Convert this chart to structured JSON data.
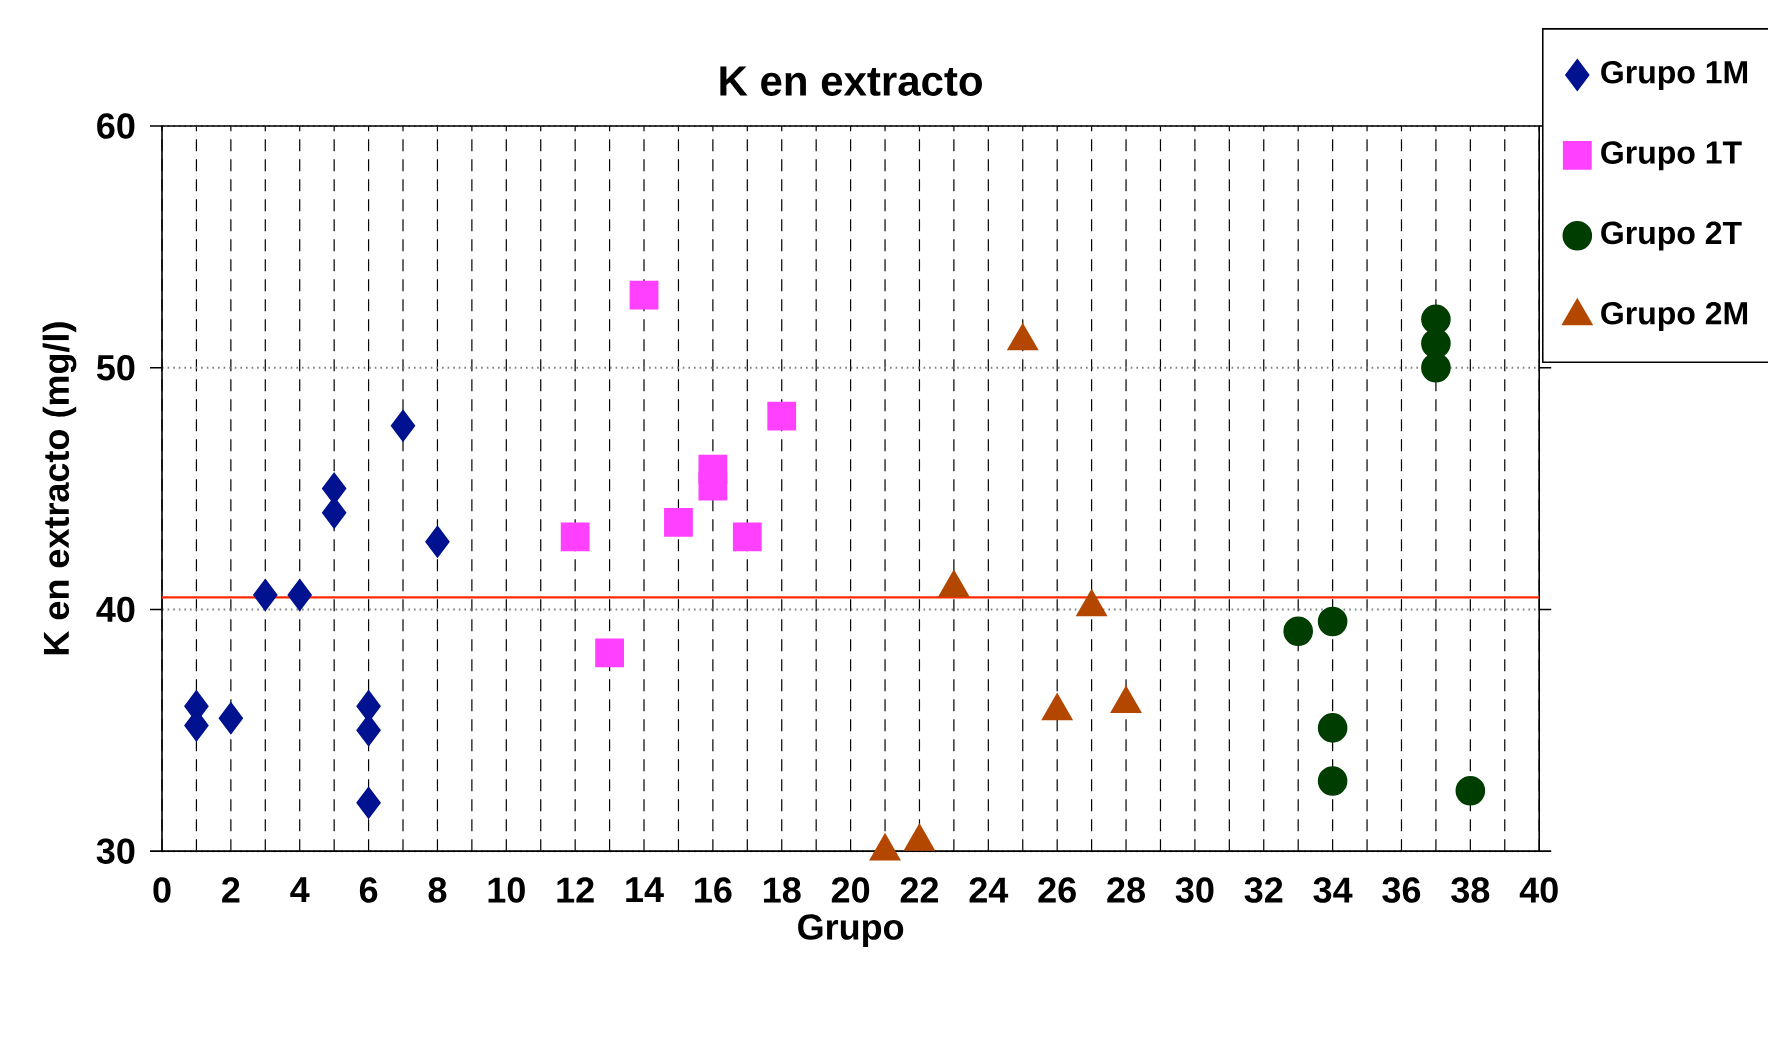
{
  "chart_data": {
    "type": "scatter",
    "title": "K en extracto",
    "xlabel": "Grupo",
    "ylabel": "K en extracto (mg/l)",
    "xlim": [
      0,
      40
    ],
    "ylim": [
      30,
      60
    ],
    "xticks": [
      0,
      {
        "value": 1,
        "label": null
      },
      2,
      {
        "value": 3,
        "label": null
      },
      4,
      {
        "value": 5,
        "label": null
      },
      6,
      {
        "value": 7,
        "label": null
      },
      8,
      {
        "value": 9,
        "label": null
      },
      10,
      {
        "value": 11,
        "label": null
      },
      12,
      {
        "value": 13,
        "label": null
      },
      14,
      {
        "value": 15,
        "label": null
      },
      16,
      {
        "value": 17,
        "label": null
      },
      18,
      {
        "value": 19,
        "label": null
      },
      20,
      {
        "value": 21,
        "label": null
      },
      22,
      {
        "value": 23,
        "label": null
      },
      24,
      {
        "value": 25,
        "label": null
      },
      26,
      {
        "value": 27,
        "label": null
      },
      28,
      {
        "value": 29,
        "label": null
      },
      30,
      {
        "value": 31,
        "label": null
      },
      32,
      {
        "value": 33,
        "label": null
      },
      34,
      {
        "value": 35,
        "label": null
      },
      36,
      {
        "value": 37,
        "label": null
      },
      38,
      {
        "value": 39,
        "label": null
      },
      40
    ],
    "yticks": [
      30,
      40,
      50,
      60
    ],
    "grid": true,
    "legend": "top right",
    "ref_lines": [
      {
        "axis": "y",
        "value": 40.5,
        "color": "#ff2a00"
      }
    ],
    "series": [
      {
        "name": "Grupo 1M",
        "color": "#00128f",
        "marker": "diamond",
        "x": [
          1,
          1,
          2,
          3,
          4,
          5,
          5,
          6,
          6,
          6,
          7,
          8
        ],
        "values": [
          36.0,
          35.2,
          35.5,
          40.6,
          40.6,
          45.0,
          44.0,
          36.0,
          35.0,
          32.0,
          47.6,
          42.8
        ]
      },
      {
        "name": "Grupo 1T",
        "color": "#ff40ff",
        "marker": "square",
        "x": [
          12,
          13,
          14,
          15,
          16,
          16,
          17,
          18
        ],
        "values": [
          43.0,
          38.2,
          53.0,
          43.6,
          45.8,
          45.1,
          43.0,
          48.0
        ]
      },
      {
        "name": "Grupo 2T",
        "color": "#003d00",
        "marker": "circle",
        "x": [
          33,
          34,
          34,
          34,
          37,
          37,
          37,
          38
        ],
        "values": [
          39.1,
          39.5,
          35.1,
          32.9,
          52.0,
          51.0,
          50.0,
          32.5
        ]
      },
      {
        "name": "Grupo 2M",
        "color": "#b34700",
        "marker": "triangle",
        "x": [
          21,
          22,
          23,
          25,
          26,
          27,
          28
        ],
        "values": [
          30.0,
          30.4,
          40.9,
          51.1,
          35.8,
          40.1,
          36.1
        ]
      }
    ]
  }
}
